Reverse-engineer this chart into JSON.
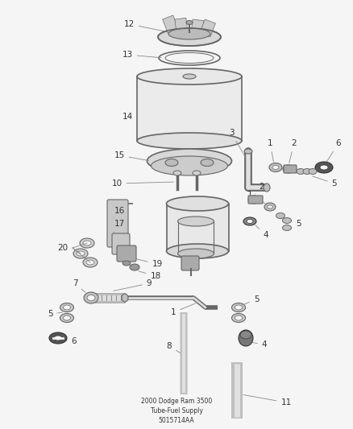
{
  "bg": "#f5f5f5",
  "lc": "#888888",
  "pc": "#666666",
  "dc": "#333333",
  "tc": "#444444",
  "title": "2000 Dodge Ram 3500\nTube-Fuel Supply\n5015714AA"
}
